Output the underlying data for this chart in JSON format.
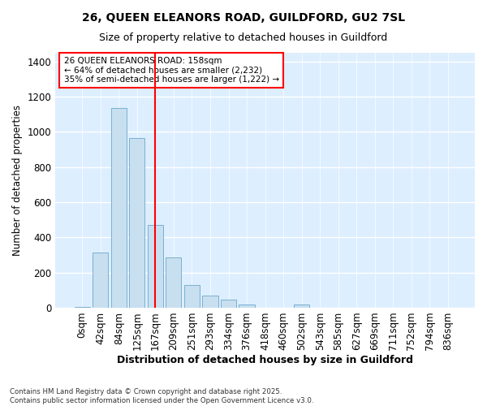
{
  "title_line1": "26, QUEEN ELEANORS ROAD, GUILDFORD, GU2 7SL",
  "title_line2": "Size of property relative to detached houses in Guildford",
  "xlabel": "Distribution of detached houses by size in Guildford",
  "ylabel": "Number of detached properties",
  "bar_color": "#c8dff0",
  "bar_edge_color": "#7ab0d0",
  "categories": [
    "0sqm",
    "42sqm",
    "84sqm",
    "125sqm",
    "167sqm",
    "209sqm",
    "251sqm",
    "293sqm",
    "334sqm",
    "376sqm",
    "418sqm",
    "460sqm",
    "502sqm",
    "543sqm",
    "585sqm",
    "627sqm",
    "669sqm",
    "711sqm",
    "752sqm",
    "794sqm",
    "836sqm"
  ],
  "values": [
    5,
    315,
    1135,
    965,
    470,
    285,
    130,
    68,
    45,
    20,
    0,
    0,
    20,
    0,
    0,
    0,
    0,
    0,
    0,
    0,
    0
  ],
  "red_line_x": 4,
  "annotation_title": "26 QUEEN ELEANORS ROAD: 158sqm",
  "annotation_line2": "← 64% of detached houses are smaller (2,232)",
  "annotation_line3": "35% of semi-detached houses are larger (1,222) →",
  "footer_line1": "Contains HM Land Registry data © Crown copyright and database right 2025.",
  "footer_line2": "Contains public sector information licensed under the Open Government Licence v3.0.",
  "ylim": [
    0,
    1450
  ],
  "background_color": "#ffffff",
  "plot_bg_color": "#ddeeff"
}
